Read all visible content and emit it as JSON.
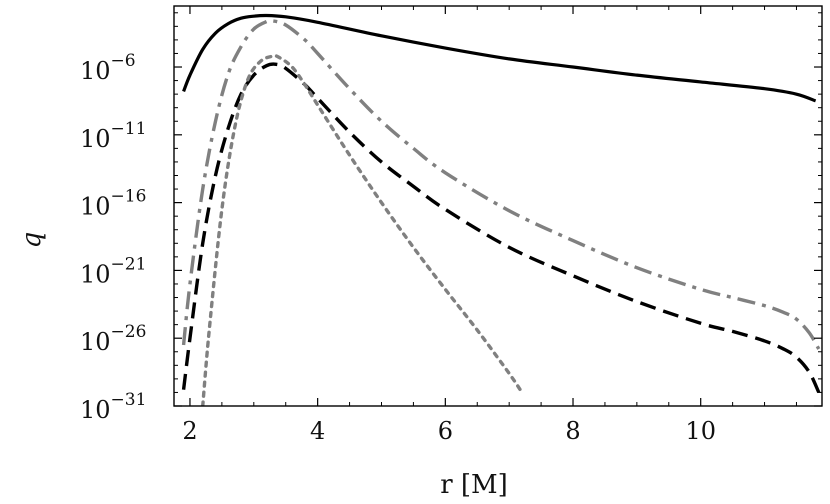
{
  "chart_data": {
    "type": "line",
    "title": "",
    "xlabel": "r  [M]",
    "ylabel": "q",
    "ylabel_accent": "‾",
    "xlim": [
      1.75,
      11.9
    ],
    "ylim_log10": [
      -31,
      -1.5
    ],
    "y_scale": "log",
    "grid": false,
    "legend": "none",
    "x_ticks": [
      {
        "value": 2,
        "label": "2"
      },
      {
        "value": 4,
        "label": "4"
      },
      {
        "value": 6,
        "label": "6"
      },
      {
        "value": 8,
        "label": "8"
      },
      {
        "value": 10,
        "label": "10"
      }
    ],
    "y_ticks": [
      {
        "exp": -6,
        "base": "10",
        "sup": "−6"
      },
      {
        "exp": -11,
        "base": "10",
        "sup": "−11"
      },
      {
        "exp": -16,
        "base": "10",
        "sup": "−16"
      },
      {
        "exp": -21,
        "base": "10",
        "sup": "−21"
      },
      {
        "exp": -26,
        "base": "10",
        "sup": "−26"
      },
      {
        "exp": -31,
        "base": "10",
        "sup": "−31"
      }
    ],
    "series": [
      {
        "style": "solid",
        "color": "#000000",
        "x": [
          1.9,
          2.0,
          2.2,
          2.4,
          2.6,
          2.8,
          3.0,
          3.2,
          3.5,
          4.0,
          5.0,
          6.0,
          7.0,
          8.0,
          9.0,
          10.0,
          11.0,
          11.5,
          11.8
        ],
        "log10y": [
          -7.8,
          -6.6,
          -4.7,
          -3.5,
          -2.8,
          -2.4,
          -2.25,
          -2.2,
          -2.3,
          -2.7,
          -3.7,
          -4.6,
          -5.4,
          -6.0,
          -6.6,
          -7.1,
          -7.6,
          -8.0,
          -8.5
        ]
      },
      {
        "style": "dashdot",
        "color": "#808080",
        "x": [
          1.9,
          2.0,
          2.2,
          2.4,
          2.6,
          2.8,
          3.0,
          3.2,
          3.3,
          3.5,
          3.8,
          4.0,
          4.5,
          5.0,
          5.5,
          6.0,
          7.0,
          8.0,
          9.0,
          10.0,
          10.5,
          11.0,
          11.3,
          11.5,
          11.7,
          11.85
        ],
        "log10y": [
          -26.5,
          -22.0,
          -15.0,
          -10.0,
          -6.5,
          -4.5,
          -3.2,
          -2.65,
          -2.6,
          -2.9,
          -4.0,
          -5.0,
          -7.6,
          -10.0,
          -12.0,
          -13.8,
          -16.6,
          -18.8,
          -20.8,
          -22.4,
          -23.0,
          -23.6,
          -24.1,
          -24.6,
          -25.6,
          -26.8
        ]
      },
      {
        "style": "dashed",
        "color": "#000000",
        "x": [
          1.9,
          2.0,
          2.2,
          2.4,
          2.6,
          2.8,
          3.0,
          3.2,
          3.35,
          3.5,
          3.8,
          4.0,
          4.5,
          5.0,
          5.5,
          6.0,
          7.0,
          8.0,
          9.0,
          10.0,
          10.5,
          11.0,
          11.3,
          11.5,
          11.7,
          11.85
        ],
        "log10y": [
          -29.8,
          -26.0,
          -19.0,
          -14.0,
          -10.5,
          -8.0,
          -6.6,
          -5.9,
          -5.8,
          -6.1,
          -7.3,
          -8.3,
          -10.8,
          -13.0,
          -14.8,
          -16.5,
          -19.3,
          -21.4,
          -23.3,
          -24.9,
          -25.5,
          -26.2,
          -26.8,
          -27.4,
          -28.5,
          -30.0
        ]
      },
      {
        "style": "dotted",
        "color": "#808080",
        "x": [
          2.2,
          2.3,
          2.5,
          2.7,
          2.9,
          3.1,
          3.3,
          3.4,
          3.6,
          3.8,
          4.0,
          4.5,
          5.0,
          5.5,
          6.0,
          6.5,
          7.0,
          7.2
        ],
        "log10y": [
          -31.0,
          -25.5,
          -16.5,
          -10.5,
          -7.0,
          -5.6,
          -5.2,
          -5.3,
          -6.0,
          -7.3,
          -8.8,
          -12.5,
          -16.0,
          -19.3,
          -22.4,
          -25.4,
          -28.6,
          -30.0
        ]
      }
    ]
  }
}
